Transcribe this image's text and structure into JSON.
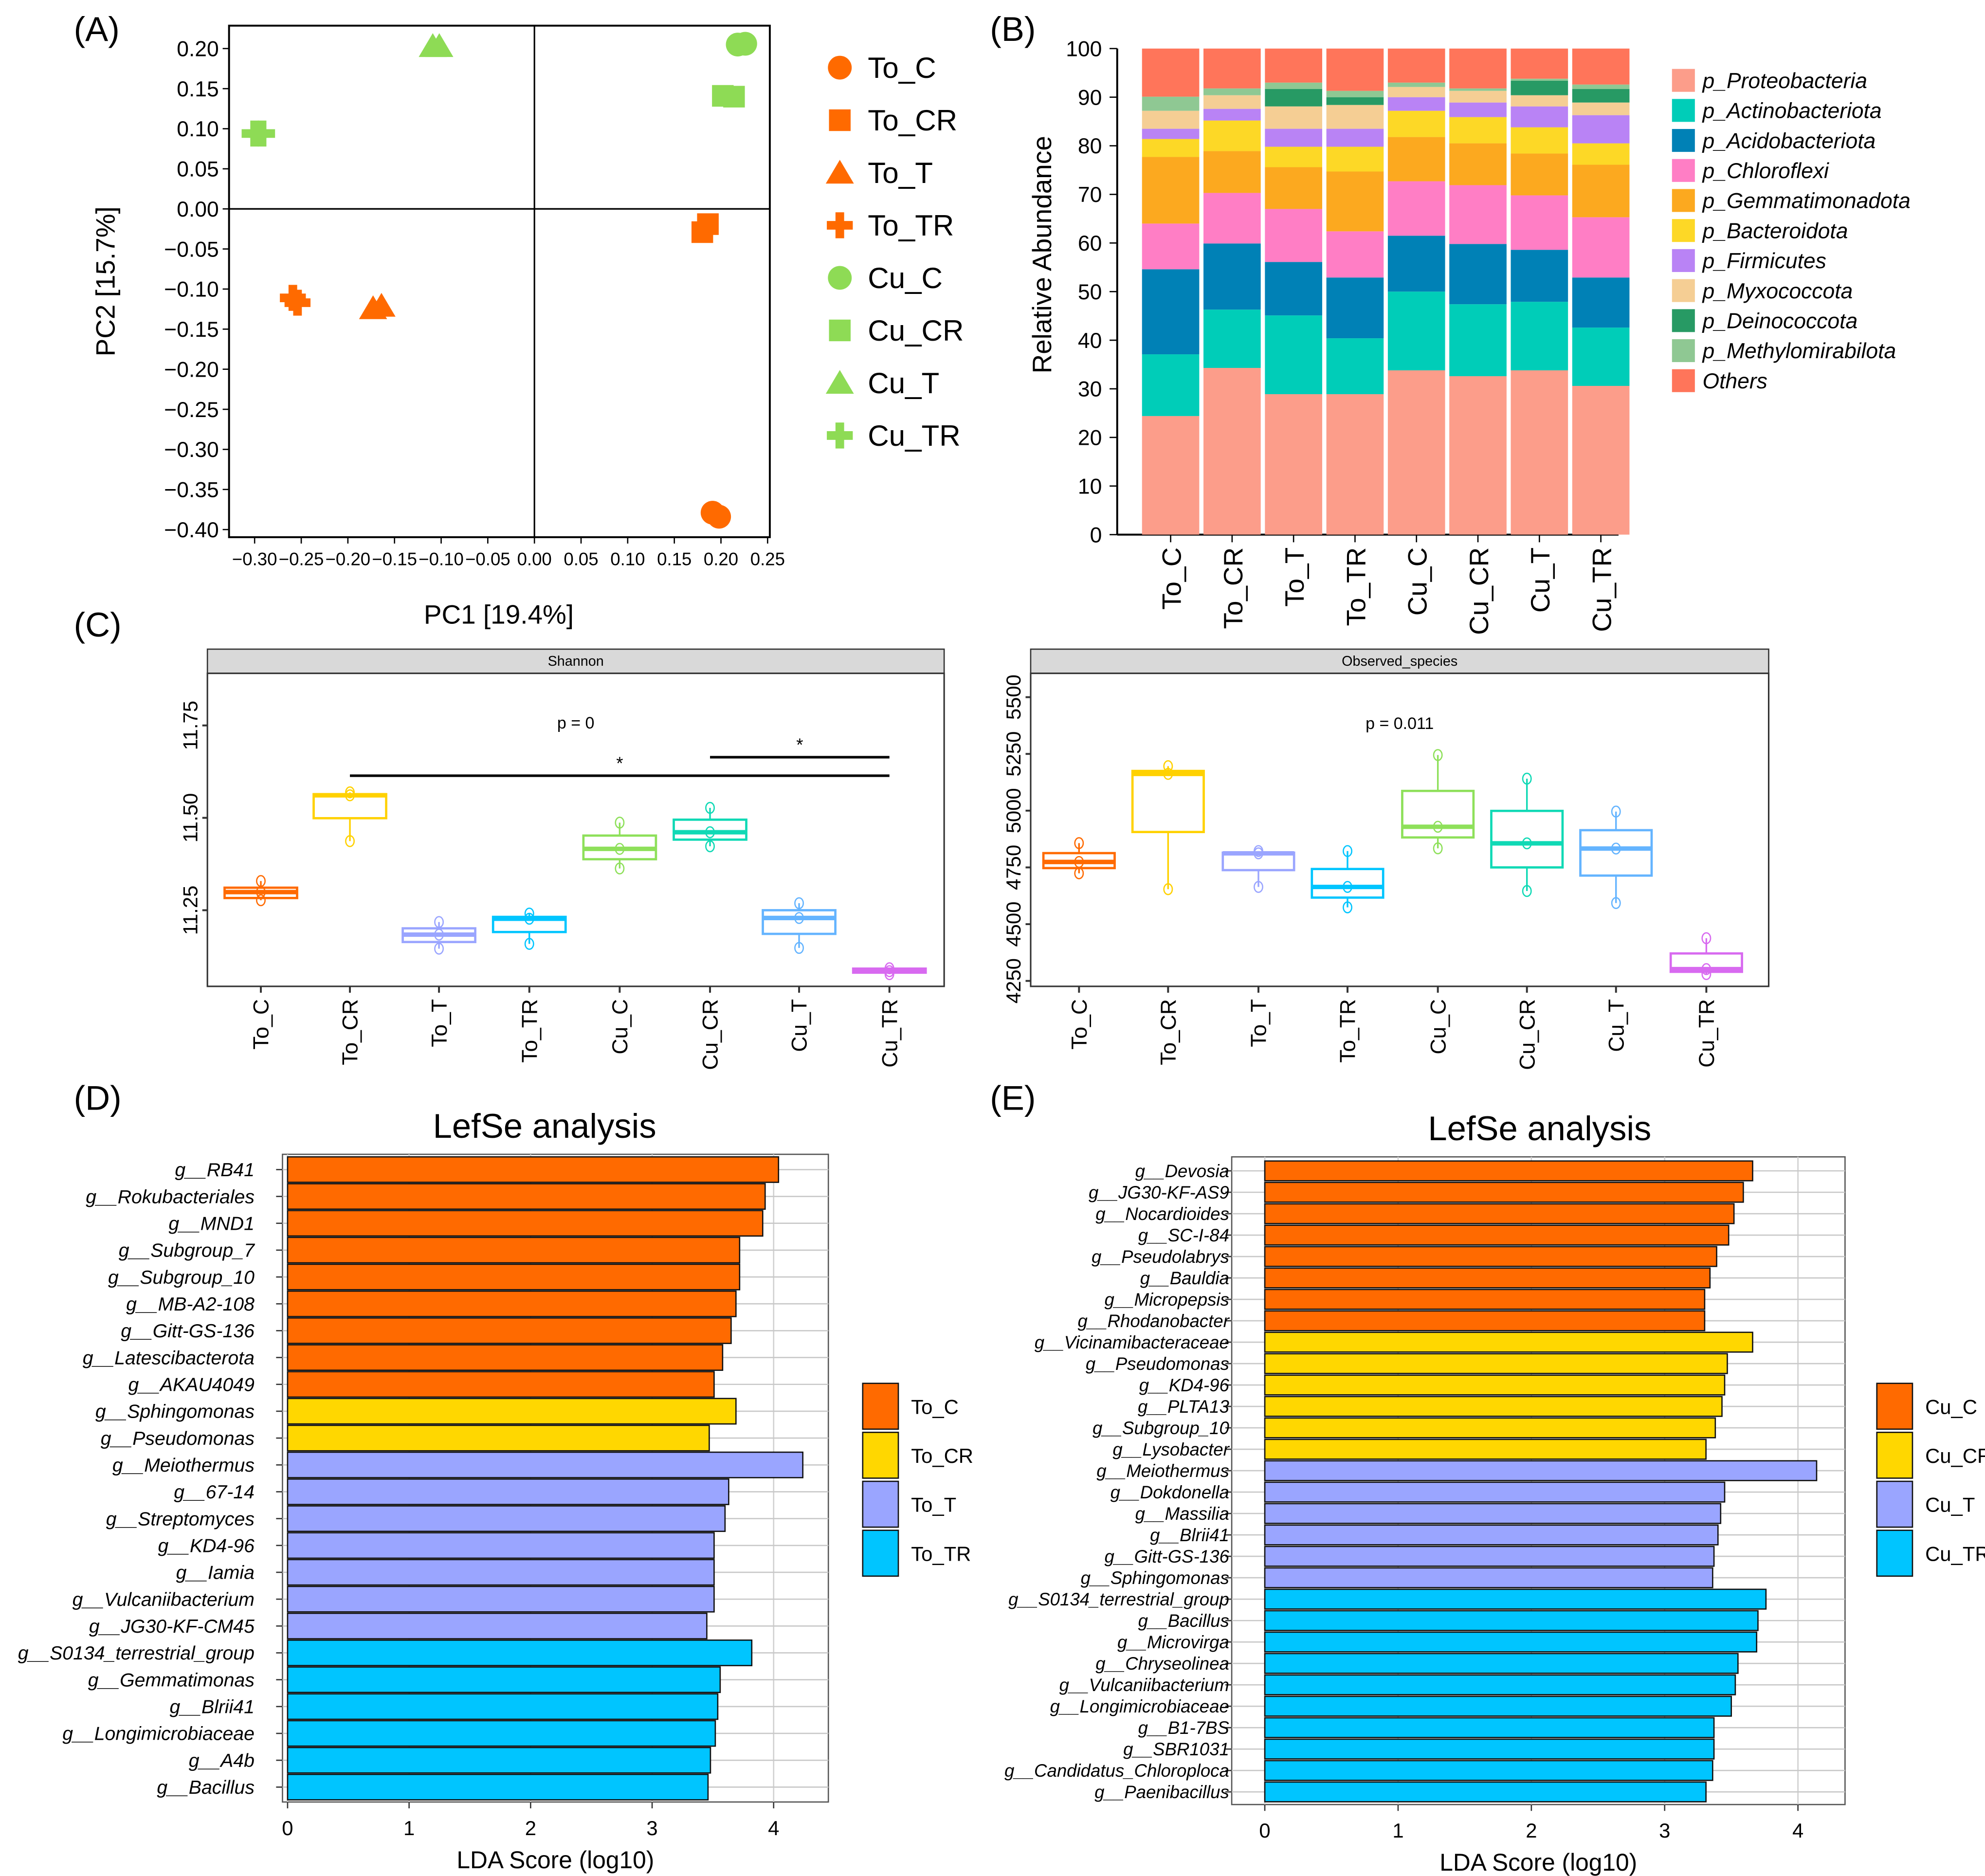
{
  "panel_labels": {
    "a": "(A)",
    "b": "(B)",
    "c": "(C)",
    "d": "(D)",
    "e": "(E)"
  },
  "group_colors": {
    "To_C": "#FF6A00",
    "To_CR": "#FFD100",
    "To_T": "#9AA5FF",
    "To_TR": "#00C5FF",
    "Cu_C": "#8EE05A",
    "Cu_CR": "#10D9B5",
    "Cu_T": "#64B4FF",
    "Cu_TR": "#D86AF0"
  },
  "chart_data": [
    {
      "id": "pca",
      "type": "scatter",
      "xlabel": "PC1 [19.4%]",
      "ylabel": "PC2 [15.7%]",
      "xlim": [
        -0.325,
        0.25
      ],
      "ylim": [
        -0.41,
        0.22
      ],
      "xticks": [
        "-0.30",
        "-0.25",
        "-0.20",
        "-0.15",
        "-0.10",
        "-0.05",
        "0.00",
        "0.05",
        "0.10",
        "0.15",
        "0.20",
        "0.25"
      ],
      "yticks": [
        "0.20",
        "0.15",
        "0.10",
        "0.05",
        "0.00",
        "-0.05",
        "-0.10",
        "-0.15",
        "-0.20",
        "-0.25",
        "-0.30",
        "-0.35",
        "-0.40"
      ],
      "reference_lines": {
        "x": 0,
        "y": 0
      },
      "legend_position": "right",
      "series": [
        {
          "name": "To_C",
          "marker": "circle",
          "color": "#FF6A00",
          "points": [
            [
              0.191,
              -0.379
            ],
            [
              0.198,
              -0.384
            ]
          ]
        },
        {
          "name": "To_CR",
          "marker": "square",
          "color": "#FF6A00",
          "points": [
            [
              0.18,
              -0.029
            ],
            [
              0.186,
              -0.019
            ]
          ]
        },
        {
          "name": "To_T",
          "marker": "triangle",
          "color": "#FF6A00",
          "points": [
            [
              -0.173,
              -0.124
            ],
            [
              -0.164,
              -0.121
            ]
          ]
        },
        {
          "name": "To_TR",
          "marker": "plus",
          "color": "#FF6A00",
          "points": [
            [
              -0.259,
              -0.111
            ],
            [
              -0.254,
              -0.117
            ]
          ]
        },
        {
          "name": "Cu_C",
          "marker": "circle",
          "color": "#8EDB55",
          "points": [
            [
              0.218,
              0.205
            ],
            [
              0.226,
              0.206
            ]
          ]
        },
        {
          "name": "Cu_CR",
          "marker": "square",
          "color": "#8EDB55",
          "points": [
            [
              0.202,
              0.141
            ],
            [
              0.214,
              0.14
            ]
          ]
        },
        {
          "name": "Cu_T",
          "marker": "triangle",
          "color": "#8EDB55",
          "points": [
            [
              -0.109,
              0.203
            ],
            [
              -0.102,
              0.203
            ]
          ]
        },
        {
          "name": "Cu_TR",
          "marker": "plus",
          "color": "#8EDB55",
          "points": [
            [
              -0.3,
              0.094
            ],
            [
              -0.292,
              0.094
            ]
          ]
        }
      ]
    },
    {
      "id": "abundance",
      "type": "bar",
      "stacked": true,
      "ylabel": "Relative Abundance",
      "ylim": [
        0,
        100
      ],
      "yticks": [
        0,
        10,
        20,
        30,
        40,
        50,
        60,
        70,
        80,
        90,
        100
      ],
      "legend_position": "right",
      "categories": [
        "To_C",
        "To_CR",
        "To_T",
        "To_TR",
        "Cu_C",
        "Cu_CR",
        "Cu_T",
        "Cu_TR"
      ],
      "series": [
        {
          "name": "p_Proteobacteria",
          "color": "#FC9D8A",
          "values": [
            24.4,
            34.3,
            28.9,
            28.9,
            33.8,
            32.6,
            33.8,
            30.6
          ]
        },
        {
          "name": "p_Actinobacteriota",
          "color": "#00CDB8",
          "values": [
            12.7,
            12.0,
            16.2,
            11.5,
            16.2,
            14.8,
            14.1,
            12.0
          ]
        },
        {
          "name": "p_Acidobacteriota",
          "color": "#0081B6",
          "values": [
            17.5,
            13.6,
            11.0,
            12.5,
            11.5,
            12.4,
            10.7,
            10.3
          ]
        },
        {
          "name": "p_Chloroflexi",
          "color": "#FF7EC5",
          "values": [
            9.4,
            10.4,
            10.9,
            9.5,
            11.2,
            12.1,
            11.2,
            12.4
          ]
        },
        {
          "name": "p_Gemmatimonadota",
          "color": "#FCA91F",
          "values": [
            13.7,
            8.6,
            8.6,
            12.3,
            9.1,
            8.6,
            8.6,
            10.8
          ]
        },
        {
          "name": "p_Bacteroidota",
          "color": "#FDD826",
          "values": [
            3.7,
            6.3,
            4.2,
            5.1,
            5.4,
            5.4,
            5.4,
            4.4
          ]
        },
        {
          "name": "p_Firmicutes",
          "color": "#B983F5",
          "values": [
            2.1,
            2.4,
            3.7,
            3.7,
            2.8,
            3.0,
            4.3,
            5.8
          ]
        },
        {
          "name": "p_Myxococcota",
          "color": "#F5CE94",
          "values": [
            3.7,
            2.8,
            4.6,
            4.9,
            2.1,
            2.4,
            2.3,
            2.6
          ]
        },
        {
          "name": "p_Deinococcota",
          "color": "#279A64",
          "values": [
            0,
            0,
            3.6,
            1.6,
            0,
            0,
            3.0,
            2.8
          ]
        },
        {
          "name": "p_Methylomirabilota",
          "color": "#8FC893",
          "values": [
            2.9,
            1.4,
            1.3,
            1.3,
            0.9,
            0.5,
            0.4,
            0.9
          ]
        },
        {
          "name": "Others",
          "color": "#FF755A",
          "values": [
            9.9,
            8.2,
            7.0,
            8.7,
            7.0,
            8.2,
            6.2,
            7.4
          ]
        }
      ]
    },
    {
      "id": "shannon",
      "type": "box",
      "strip_title": "Shannon",
      "ylim": [
        11.044,
        11.891
      ],
      "yticks": [
        "11.25",
        "11.50",
        "11.75"
      ],
      "annotation": {
        "text": "p = 0",
        "y": 11.759
      },
      "significance": [
        {
          "from": "To_CR",
          "to": "Cu_TR",
          "y": 11.614,
          "label": "*"
        },
        {
          "from": "Cu_CR",
          "to": "Cu_TR",
          "y": 11.664,
          "label": "*"
        }
      ],
      "categories": [
        "To_C",
        "To_CR",
        "To_T",
        "To_TR",
        "Cu_C",
        "Cu_CR",
        "Cu_T",
        "Cu_TR"
      ],
      "boxes": [
        {
          "min": 11.277,
          "q1": 11.283,
          "median": 11.299,
          "q3": 11.311,
          "max": 11.329
        },
        {
          "min": 11.437,
          "q1": 11.499,
          "median": 11.561,
          "q3": 11.564,
          "max": 11.569
        },
        {
          "min": 11.146,
          "q1": 11.164,
          "median": 11.184,
          "q3": 11.201,
          "max": 11.218
        },
        {
          "min": 11.159,
          "q1": 11.191,
          "median": 11.227,
          "q3": 11.232,
          "max": 11.241
        },
        {
          "min": 11.363,
          "q1": 11.388,
          "median": 11.416,
          "q3": 11.452,
          "max": 11.487
        },
        {
          "min": 11.423,
          "q1": 11.441,
          "median": 11.461,
          "q3": 11.495,
          "max": 11.527
        },
        {
          "min": 11.148,
          "q1": 11.186,
          "median": 11.229,
          "q3": 11.25,
          "max": 11.269
        },
        {
          "min": 11.077,
          "q1": 11.081,
          "median": 11.085,
          "q3": 11.092,
          "max": 11.093
        }
      ]
    },
    {
      "id": "observed",
      "type": "box",
      "strip_title": "Observed_species",
      "ylim": [
        4226,
        5605
      ],
      "yticks": [
        "4250",
        "4500",
        "4750",
        "5000",
        "5250",
        "5500"
      ],
      "annotation": {
        "text": "p = 0.011",
        "y": 5388
      },
      "categories": [
        "To_C",
        "To_CR",
        "To_T",
        "To_TR",
        "Cu_C",
        "Cu_CR",
        "Cu_T",
        "Cu_TR"
      ],
      "boxes": [
        {
          "min": 4724,
          "q1": 4747,
          "median": 4774,
          "q3": 4813,
          "max": 4857
        },
        {
          "min": 4654,
          "q1": 4906,
          "median": 5162,
          "q3": 5175,
          "max": 5196
        },
        {
          "min": 4664,
          "q1": 4738,
          "median": 4812,
          "q3": 4815,
          "max": 4822
        },
        {
          "min": 4574,
          "q1": 4617,
          "median": 4664,
          "q3": 4743,
          "max": 4822
        },
        {
          "min": 4834,
          "q1": 4882,
          "median": 4929,
          "q3": 5087,
          "max": 5245
        },
        {
          "min": 4646,
          "q1": 4750,
          "median": 4856,
          "q3": 4999,
          "max": 5141
        },
        {
          "min": 4593,
          "q1": 4714,
          "median": 4833,
          "q3": 4914,
          "max": 4996
        },
        {
          "min": 4280,
          "q1": 4290,
          "median": 4302,
          "q3": 4371,
          "max": 4438
        }
      ]
    },
    {
      "id": "lefse_to",
      "type": "bar",
      "orientation": "horizontal",
      "title": "LefSe analysis",
      "xlabel": "LDA Score (log10)",
      "xlim": [
        0,
        4.45
      ],
      "xticks": [
        0,
        1,
        2,
        3,
        4
      ],
      "legend_position": "right",
      "legend": [
        {
          "name": "To_C",
          "color": "#FF6A00"
        },
        {
          "name": "To_CR",
          "color": "#FFD700"
        },
        {
          "name": "To_T",
          "color": "#9AA5FF"
        },
        {
          "name": "To_TR",
          "color": "#00C5FF"
        }
      ],
      "bars": [
        {
          "label": "g__RB41",
          "group": "To_C",
          "value": 4.04
        },
        {
          "label": "g__Rokubacteriales",
          "group": "To_C",
          "value": 3.93
        },
        {
          "label": "g__MND1",
          "group": "To_C",
          "value": 3.91
        },
        {
          "label": "g__Subgroup_7",
          "group": "To_C",
          "value": 3.72
        },
        {
          "label": "g__Subgroup_10",
          "group": "To_C",
          "value": 3.72
        },
        {
          "label": "g__MB-A2-108",
          "group": "To_C",
          "value": 3.69
        },
        {
          "label": "g__Gitt-GS-136",
          "group": "To_C",
          "value": 3.65
        },
        {
          "label": "g__Latescibacterota",
          "group": "To_C",
          "value": 3.58
        },
        {
          "label": "g__AKAU4049",
          "group": "To_C",
          "value": 3.51
        },
        {
          "label": "g__Sphingomonas",
          "group": "To_CR",
          "value": 3.69
        },
        {
          "label": "g__Pseudomonas",
          "group": "To_CR",
          "value": 3.47
        },
        {
          "label": "g__Meiothermus",
          "group": "To_T",
          "value": 4.24
        },
        {
          "label": "g__67-14",
          "group": "To_T",
          "value": 3.63
        },
        {
          "label": "g__Streptomyces",
          "group": "To_T",
          "value": 3.6
        },
        {
          "label": "g__KD4-96",
          "group": "To_T",
          "value": 3.51
        },
        {
          "label": "g__Iamia",
          "group": "To_T",
          "value": 3.51
        },
        {
          "label": "g__Vulcaniibacterium",
          "group": "To_T",
          "value": 3.51
        },
        {
          "label": "g__JG30-KF-CM45",
          "group": "To_T",
          "value": 3.45
        },
        {
          "label": "g__S0134_terrestrial_group",
          "group": "To_TR",
          "value": 3.82
        },
        {
          "label": "g__Gemmatimonas",
          "group": "To_TR",
          "value": 3.56
        },
        {
          "label": "g__Blrii41",
          "group": "To_TR",
          "value": 3.54
        },
        {
          "label": "g__Longimicrobiaceae",
          "group": "To_TR",
          "value": 3.52
        },
        {
          "label": "g__A4b",
          "group": "To_TR",
          "value": 3.48
        },
        {
          "label": "g__Bacillus",
          "group": "To_TR",
          "value": 3.46
        }
      ]
    },
    {
      "id": "lefse_cu",
      "type": "bar",
      "orientation": "horizontal",
      "title": "LefSe analysis",
      "xlabel": "LDA Score (log10)",
      "xlim": [
        0,
        4.35
      ],
      "xticks": [
        0,
        1,
        2,
        3,
        4
      ],
      "legend_position": "right",
      "legend": [
        {
          "name": "Cu_C",
          "color": "#FF6A00"
        },
        {
          "name": "Cu_CR",
          "color": "#FFD700"
        },
        {
          "name": "Cu_T",
          "color": "#9AA5FF"
        },
        {
          "name": "Cu_TR",
          "color": "#00C5FF"
        }
      ],
      "bars": [
        {
          "label": "g__Devosia",
          "group": "Cu_C",
          "value": 3.66
        },
        {
          "label": "g__JG30-KF-AS9",
          "group": "Cu_C",
          "value": 3.59
        },
        {
          "label": "g__Nocardioides",
          "group": "Cu_C",
          "value": 3.52
        },
        {
          "label": "g__SC-I-84",
          "group": "Cu_C",
          "value": 3.48
        },
        {
          "label": "g__Pseudolabrys",
          "group": "Cu_C",
          "value": 3.39
        },
        {
          "label": "g__Bauldia",
          "group": "Cu_C",
          "value": 3.34
        },
        {
          "label": "g__Micropepsis",
          "group": "Cu_C",
          "value": 3.3
        },
        {
          "label": "g__Rhodanobacter",
          "group": "Cu_C",
          "value": 3.3
        },
        {
          "label": "g__Vicinamibacteraceae",
          "group": "Cu_CR",
          "value": 3.66
        },
        {
          "label": "g__Pseudomonas",
          "group": "Cu_CR",
          "value": 3.47
        },
        {
          "label": "g__KD4-96",
          "group": "Cu_CR",
          "value": 3.45
        },
        {
          "label": "g__PLTA13",
          "group": "Cu_CR",
          "value": 3.43
        },
        {
          "label": "g__Subgroup_10",
          "group": "Cu_CR",
          "value": 3.38
        },
        {
          "label": "g__Lysobacter",
          "group": "Cu_CR",
          "value": 3.31
        },
        {
          "label": "g__Meiothermus",
          "group": "Cu_T",
          "value": 4.14
        },
        {
          "label": "g__Dokdonella",
          "group": "Cu_T",
          "value": 3.45
        },
        {
          "label": "g__Massilia",
          "group": "Cu_T",
          "value": 3.42
        },
        {
          "label": "g__Blrii41",
          "group": "Cu_T",
          "value": 3.4
        },
        {
          "label": "g__Gitt-GS-136",
          "group": "Cu_T",
          "value": 3.37
        },
        {
          "label": "g__Sphingomonas",
          "group": "Cu_T",
          "value": 3.36
        },
        {
          "label": "g__S0134_terrestrial_group",
          "group": "Cu_TR",
          "value": 3.76
        },
        {
          "label": "g__Bacillus",
          "group": "Cu_TR",
          "value": 3.7
        },
        {
          "label": "g__Microvirga",
          "group": "Cu_TR",
          "value": 3.69
        },
        {
          "label": "g__Chryseolinea",
          "group": "Cu_TR",
          "value": 3.55
        },
        {
          "label": "g__Vulcaniibacterium",
          "group": "Cu_TR",
          "value": 3.53
        },
        {
          "label": "g__Longimicrobiaceae",
          "group": "Cu_TR",
          "value": 3.5
        },
        {
          "label": "g__B1-7BS",
          "group": "Cu_TR",
          "value": 3.37
        },
        {
          "label": "g__SBR1031",
          "group": "Cu_TR",
          "value": 3.37
        },
        {
          "label": "g__Candidatus_Chloroploca",
          "group": "Cu_TR",
          "value": 3.36
        },
        {
          "label": "g__Paenibacillus",
          "group": "Cu_TR",
          "value": 3.31
        }
      ]
    }
  ]
}
